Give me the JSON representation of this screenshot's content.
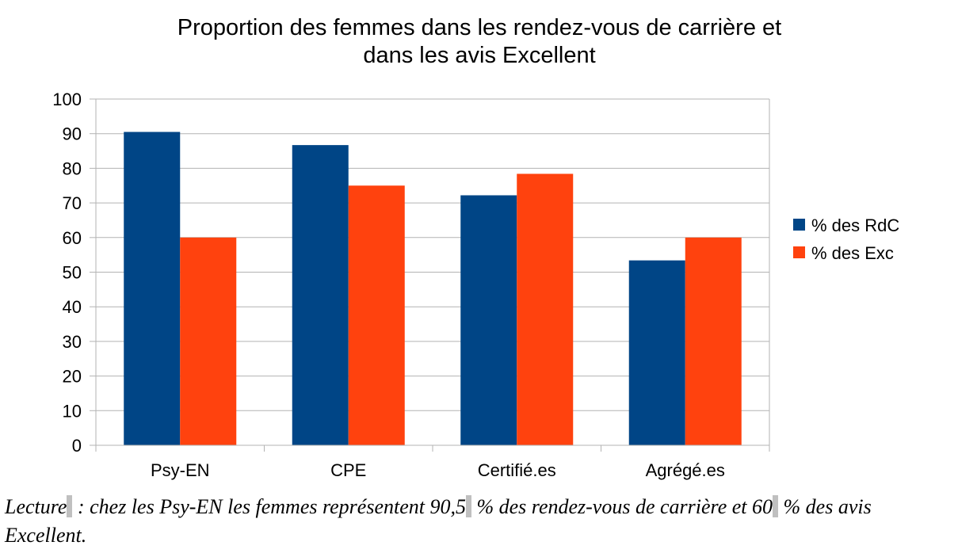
{
  "chart_data": {
    "type": "bar",
    "title_lines": [
      "Proportion des femmes dans les rendez-vous de carrière et",
      "dans les avis Excellent"
    ],
    "categories": [
      "Psy-EN",
      "CPE",
      "Certifié.es",
      "Agrégé.es"
    ],
    "series": [
      {
        "name": "% des RdC",
        "color": "#004586",
        "values": [
          90.5,
          86.7,
          72.2,
          53.4
        ]
      },
      {
        "name": "% des Exc",
        "color": "#ff420e",
        "values": [
          60,
          75,
          78.4,
          60
        ]
      }
    ],
    "ylim": [
      0,
      100
    ],
    "yticks": [
      0,
      10,
      20,
      30,
      40,
      50,
      60,
      70,
      80,
      90,
      100
    ],
    "grid": true,
    "legend_position": "right"
  },
  "caption": {
    "lead": "Lecture",
    "part1": " : chez les Psy-EN les femmes représentent 90,5",
    "part2": " % des rendez-vous de carrière et 60",
    "part3": " % des avis Excellent."
  }
}
